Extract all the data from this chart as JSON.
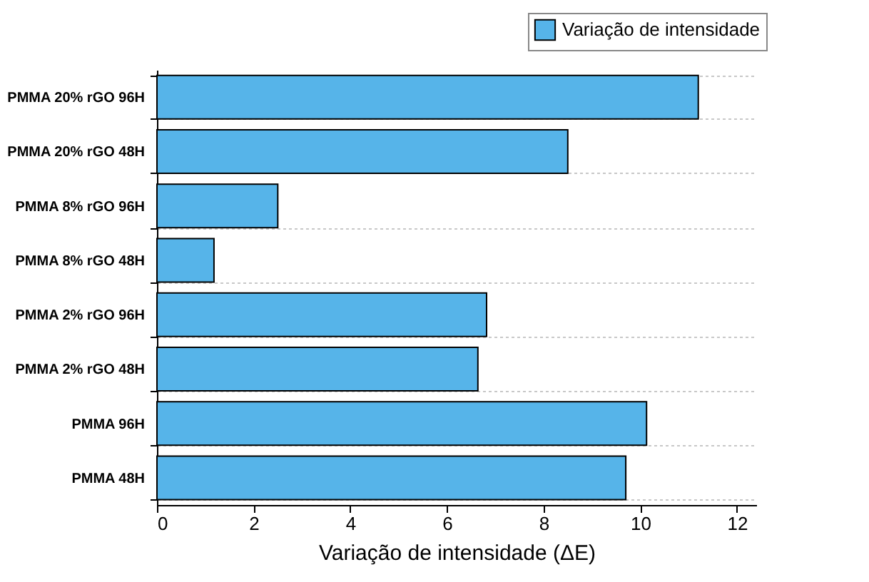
{
  "chart_data": {
    "type": "bar",
    "orientation": "horizontal",
    "xlabel": "Variação de intensidade (ΔE)",
    "categories": [
      "PMMA 20% rGO 96H",
      "PMMA 20% rGO 48H",
      "PMMA 8% rGO 96H",
      "PMMA 8% rGO 48H",
      "PMMA 2% rGO 96H",
      "PMMA 2% rGO 48H",
      "PMMA 96H",
      "PMMA 48H"
    ],
    "series": [
      {
        "name": "Variação de intensidade",
        "color": "#56b4e9",
        "values": [
          11.2,
          8.5,
          2.5,
          1.18,
          6.82,
          6.64,
          10.13,
          9.7
        ]
      }
    ],
    "xlim": [
      0,
      12.4
    ],
    "xticks": [
      0,
      2,
      4,
      6,
      8,
      10,
      12
    ],
    "grid": "y",
    "legend": "top right"
  }
}
